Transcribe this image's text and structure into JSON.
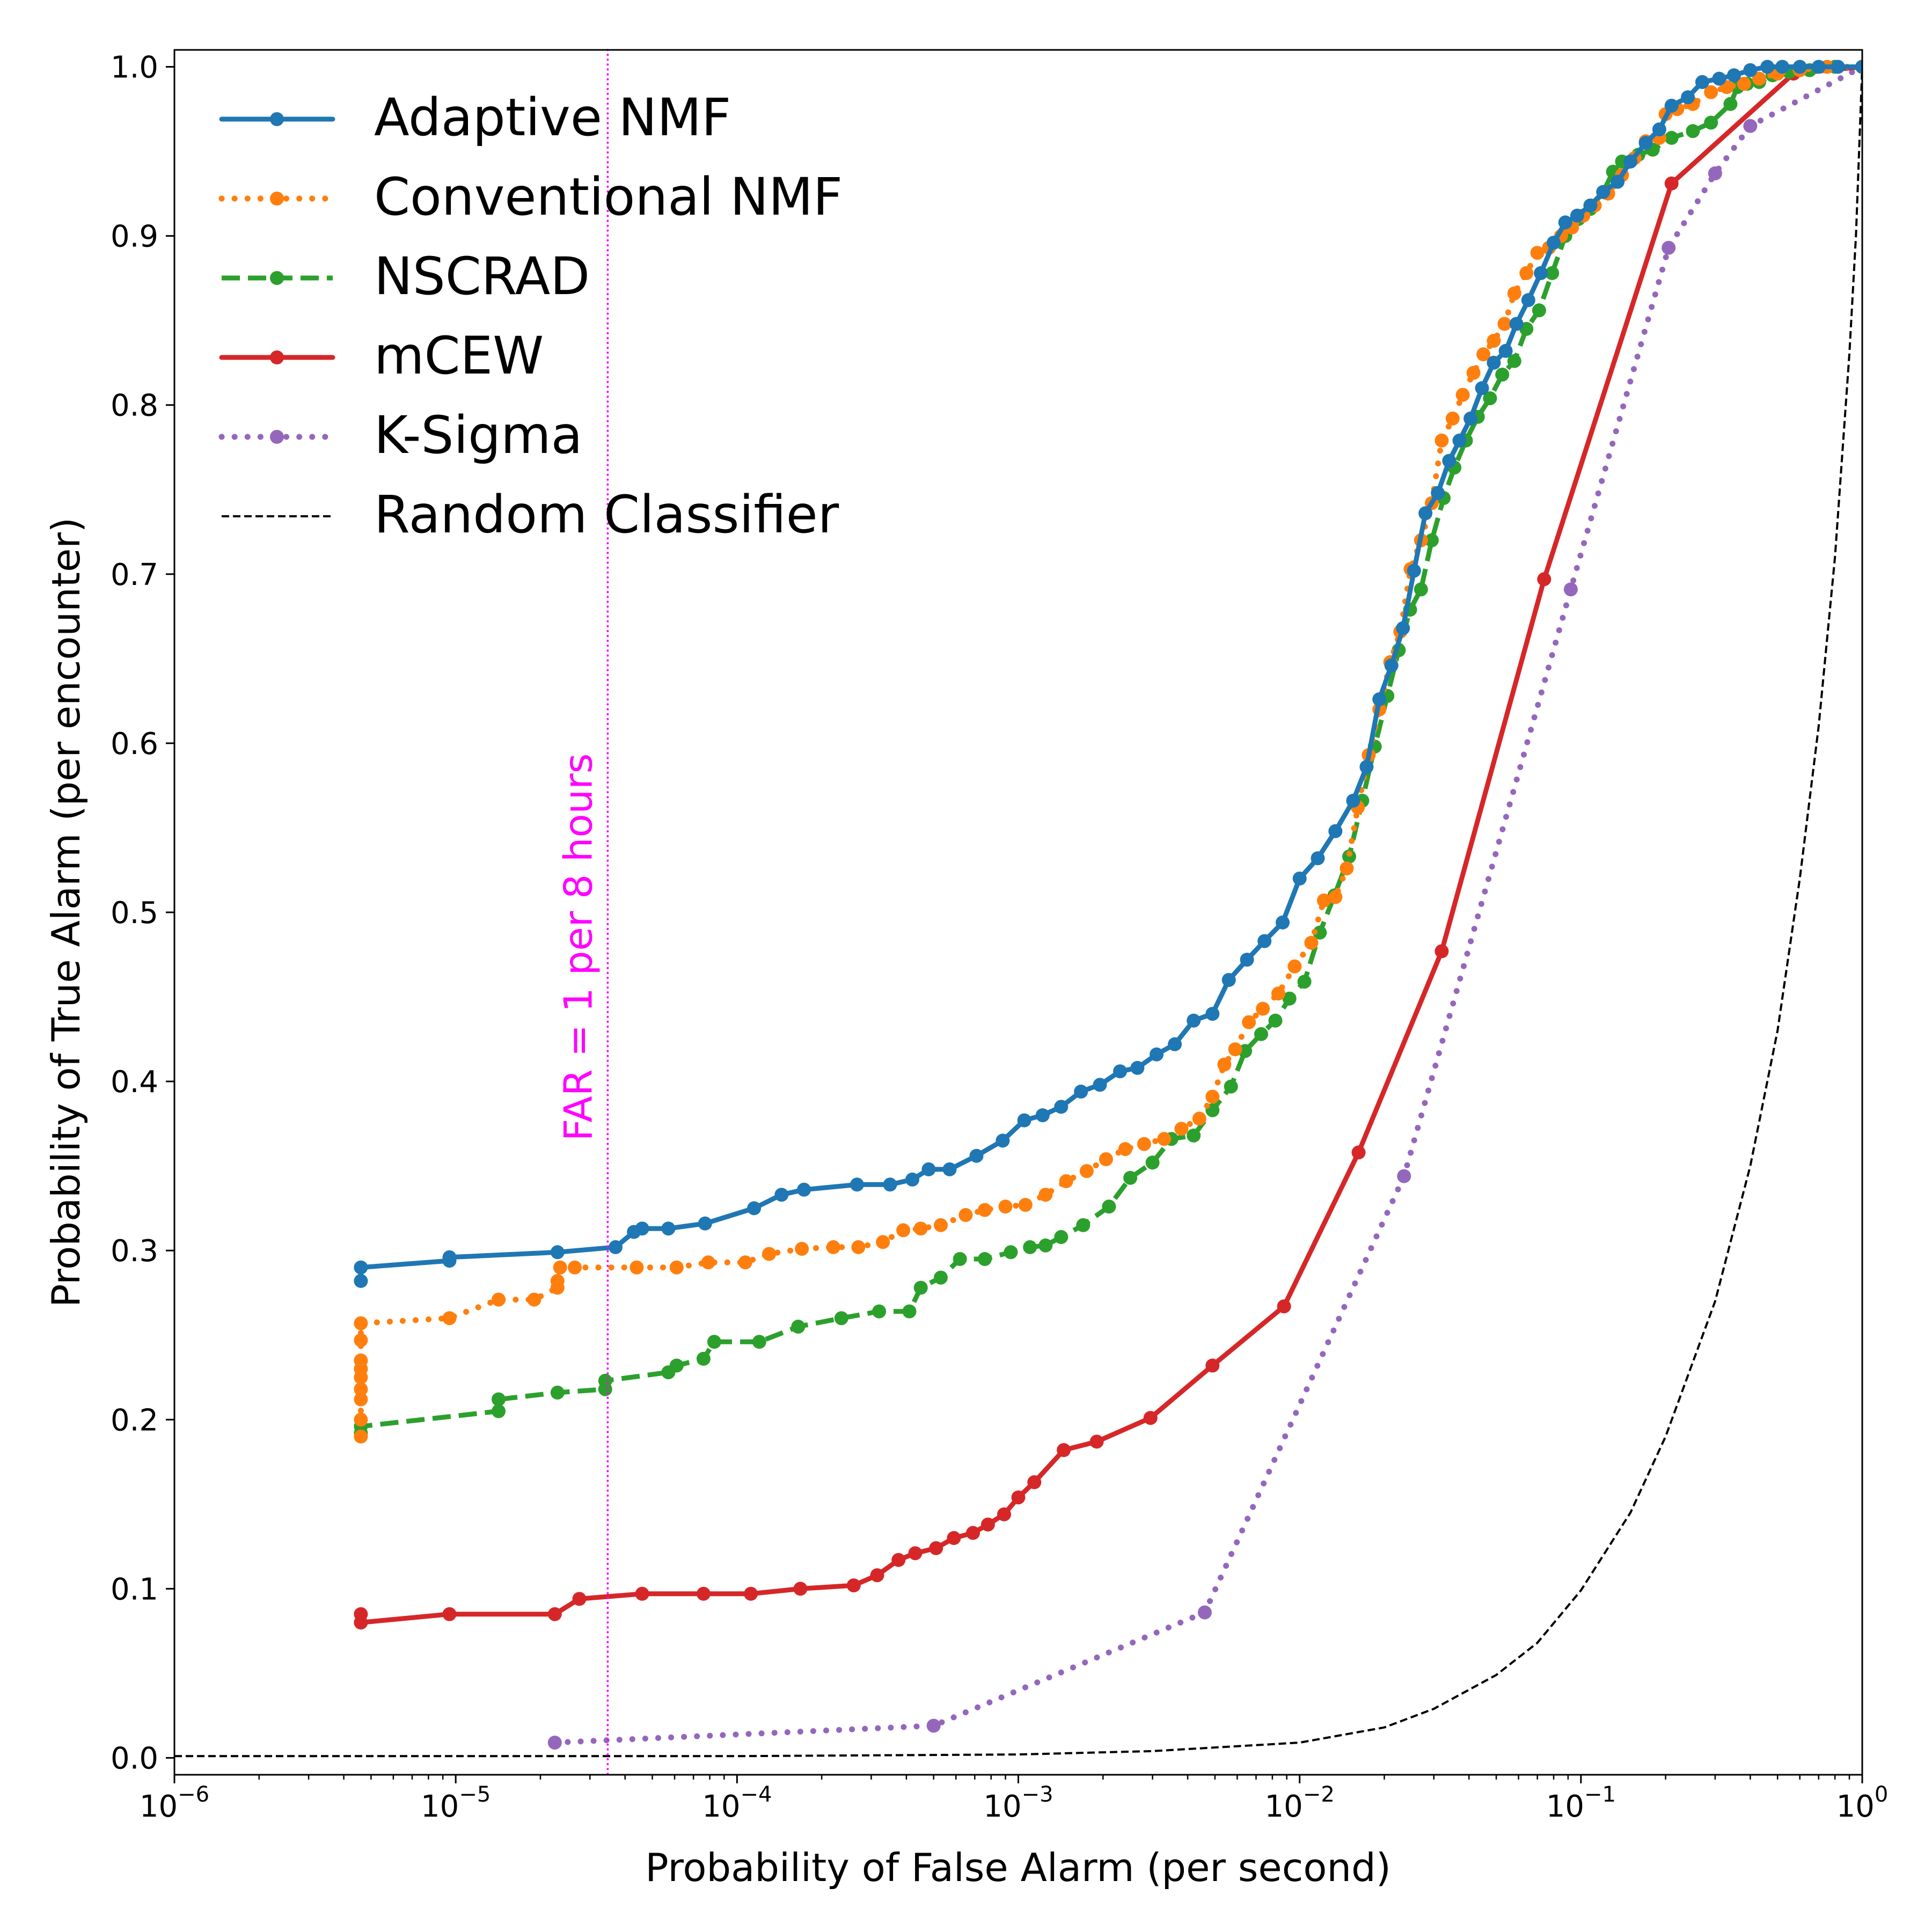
{
  "chart_data": {
    "type": "line",
    "xscale": "log",
    "xlim": [
      1e-06,
      1
    ],
    "ylim": [
      -0.01,
      1.01
    ],
    "xlabel": "Probability of False Alarm (per second)",
    "ylabel": "Probability of True Alarm (per encounter)",
    "xticks": [
      {
        "value": 1e-06,
        "base": "10",
        "exp": "−6"
      },
      {
        "value": 1e-05,
        "base": "10",
        "exp": "−5"
      },
      {
        "value": 0.0001,
        "base": "10",
        "exp": "−4"
      },
      {
        "value": 0.001,
        "base": "10",
        "exp": "−3"
      },
      {
        "value": 0.01,
        "base": "10",
        "exp": "−2"
      },
      {
        "value": 0.1,
        "base": "10",
        "exp": "−1"
      },
      {
        "value": 1,
        "base": "10",
        "exp": "0"
      }
    ],
    "yticks": [
      {
        "value": 0.0,
        "label": "0.0"
      },
      {
        "value": 0.1,
        "label": "0.1"
      },
      {
        "value": 0.2,
        "label": "0.2"
      },
      {
        "value": 0.3,
        "label": "0.3"
      },
      {
        "value": 0.4,
        "label": "0.4"
      },
      {
        "value": 0.5,
        "label": "0.5"
      },
      {
        "value": 0.6,
        "label": "0.6"
      },
      {
        "value": 0.7,
        "label": "0.7"
      },
      {
        "value": 0.8,
        "label": "0.8"
      },
      {
        "value": 0.9,
        "label": "0.9"
      },
      {
        "value": 1.0,
        "label": "1.0"
      }
    ],
    "legend_position": "upper-left",
    "vline": {
      "x": 3.47e-05,
      "label": "FAR = 1 per 8 hours",
      "color": "#ff00ff"
    },
    "series": [
      {
        "name": "Adaptive NMF",
        "color": "#1f77b4",
        "style": "solid",
        "markers": true,
        "x": [
          4.6e-06,
          4.6e-06,
          9.5e-06,
          9.5e-06,
          2.3e-05,
          3.7e-05,
          4.3e-05,
          4.6e-05,
          5.7e-05,
          7.7e-05,
          0.000115,
          0.000144,
          0.000173,
          0.000267,
          0.00035,
          0.00042,
          0.00048,
          0.00057,
          0.00071,
          0.00088,
          0.00105,
          0.00122,
          0.00142,
          0.00167,
          0.00195,
          0.0023,
          0.00265,
          0.0031,
          0.0036,
          0.0042,
          0.0049,
          0.0056,
          0.0065,
          0.0075,
          0.0087,
          0.01,
          0.0116,
          0.0134,
          0.0155,
          0.0173,
          0.0192,
          0.0212,
          0.0233,
          0.0255,
          0.028,
          0.031,
          0.034,
          0.037,
          0.0405,
          0.0445,
          0.049,
          0.054,
          0.059,
          0.065,
          0.072,
          0.08,
          0.088,
          0.097,
          0.108,
          0.12,
          0.135,
          0.15,
          0.17,
          0.19,
          0.21,
          0.24,
          0.27,
          0.31,
          0.35,
          0.4,
          0.46,
          0.52,
          0.6,
          0.7,
          0.82,
          1.0
        ],
        "y": [
          0.282,
          0.29,
          0.294,
          0.296,
          0.299,
          0.302,
          0.311,
          0.313,
          0.313,
          0.316,
          0.325,
          0.333,
          0.336,
          0.339,
          0.339,
          0.342,
          0.348,
          0.348,
          0.356,
          0.365,
          0.377,
          0.38,
          0.385,
          0.394,
          0.398,
          0.406,
          0.408,
          0.416,
          0.422,
          0.436,
          0.44,
          0.46,
          0.472,
          0.483,
          0.494,
          0.52,
          0.532,
          0.548,
          0.566,
          0.586,
          0.626,
          0.646,
          0.668,
          0.702,
          0.736,
          0.748,
          0.767,
          0.779,
          0.792,
          0.81,
          0.825,
          0.832,
          0.848,
          0.862,
          0.878,
          0.896,
          0.908,
          0.912,
          0.918,
          0.926,
          0.932,
          0.944,
          0.955,
          0.963,
          0.977,
          0.982,
          0.991,
          0.993,
          0.995,
          0.998,
          1.0,
          1.0,
          1.0,
          1.0,
          1.0,
          1.0
        ]
      },
      {
        "name": "Conventional NMF",
        "color": "#ff7f0e",
        "style": "dotted",
        "markers": true,
        "x": [
          4.6e-06,
          4.6e-06,
          4.6e-06,
          4.6e-06,
          4.6e-06,
          4.6e-06,
          4.6e-06,
          4.6e-06,
          4.6e-06,
          9.5e-06,
          1.42e-05,
          1.9e-05,
          2.3e-05,
          2.3e-05,
          2.35e-05,
          2.65e-05,
          4.4e-05,
          6.1e-05,
          7.9e-05,
          0.000107,
          0.00013,
          0.00017,
          0.00022,
          0.00027,
          0.00033,
          0.00039,
          0.00045,
          0.00053,
          0.00065,
          0.00076,
          0.0009,
          0.00106,
          0.00125,
          0.00148,
          0.00175,
          0.00205,
          0.0024,
          0.0028,
          0.0033,
          0.0038,
          0.0044,
          0.0049,
          0.0054,
          0.0059,
          0.0066,
          0.0074,
          0.0084,
          0.0096,
          0.011,
          0.0122,
          0.0134,
          0.0147,
          0.0161,
          0.0176,
          0.0192,
          0.021,
          0.0228,
          0.0248,
          0.027,
          0.0295,
          0.032,
          0.035,
          0.038,
          0.0415,
          0.045,
          0.049,
          0.0535,
          0.058,
          0.064,
          0.07,
          0.077,
          0.085,
          0.093,
          0.102,
          0.112,
          0.125,
          0.14,
          0.155,
          0.17,
          0.19,
          0.2,
          0.22,
          0.25,
          0.29,
          0.33,
          0.38,
          0.43,
          0.5,
          0.6,
          0.75,
          1.0
        ],
        "y": [
          0.19,
          0.2,
          0.212,
          0.218,
          0.225,
          0.23,
          0.235,
          0.247,
          0.257,
          0.26,
          0.271,
          0.271,
          0.278,
          0.282,
          0.29,
          0.29,
          0.29,
          0.29,
          0.293,
          0.293,
          0.298,
          0.301,
          0.302,
          0.302,
          0.305,
          0.312,
          0.313,
          0.315,
          0.321,
          0.324,
          0.326,
          0.327,
          0.333,
          0.341,
          0.347,
          0.354,
          0.36,
          0.363,
          0.366,
          0.372,
          0.378,
          0.391,
          0.41,
          0.419,
          0.435,
          0.443,
          0.452,
          0.468,
          0.482,
          0.507,
          0.509,
          0.526,
          0.562,
          0.593,
          0.62,
          0.648,
          0.666,
          0.703,
          0.72,
          0.742,
          0.779,
          0.792,
          0.806,
          0.819,
          0.83,
          0.838,
          0.848,
          0.866,
          0.878,
          0.89,
          0.893,
          0.9,
          0.905,
          0.912,
          0.918,
          0.925,
          0.936,
          0.946,
          0.956,
          0.958,
          0.972,
          0.975,
          0.978,
          0.985,
          0.988,
          0.99,
          0.993,
          0.996,
          0.998,
          1.0,
          1.0
        ]
      },
      {
        "name": "NSCRAD",
        "color": "#2ca02c",
        "style": "dashed",
        "markers": true,
        "x": [
          4.6e-06,
          4.6e-06,
          1.42e-05,
          1.42e-05,
          2.3e-05,
          3.4e-05,
          3.4e-05,
          5.7e-05,
          6.1e-05,
          7.6e-05,
          8.3e-05,
          0.00012,
          0.000165,
          0.000235,
          0.00032,
          0.00041,
          0.00045,
          0.00053,
          0.00062,
          0.00076,
          0.00094,
          0.0011,
          0.00125,
          0.00142,
          0.0017,
          0.0021,
          0.0025,
          0.003,
          0.0035,
          0.0042,
          0.0049,
          0.0057,
          0.0064,
          0.0073,
          0.0082,
          0.0092,
          0.0104,
          0.0118,
          0.0133,
          0.015,
          0.0167,
          0.0185,
          0.0205,
          0.0225,
          0.0247,
          0.027,
          0.0295,
          0.0325,
          0.0355,
          0.039,
          0.043,
          0.0475,
          0.0525,
          0.058,
          0.064,
          0.071,
          0.079,
          0.088,
          0.098,
          0.108,
          0.12,
          0.13,
          0.14,
          0.16,
          0.18,
          0.21,
          0.25,
          0.29,
          0.34,
          0.36,
          0.39,
          0.43,
          0.48,
          0.55,
          0.65,
          0.8,
          1.0
        ],
        "y": [
          0.192,
          0.196,
          0.205,
          0.212,
          0.216,
          0.218,
          0.223,
          0.228,
          0.232,
          0.236,
          0.246,
          0.246,
          0.255,
          0.26,
          0.264,
          0.264,
          0.278,
          0.284,
          0.295,
          0.295,
          0.299,
          0.302,
          0.303,
          0.308,
          0.315,
          0.326,
          0.343,
          0.352,
          0.366,
          0.368,
          0.383,
          0.397,
          0.418,
          0.428,
          0.436,
          0.449,
          0.459,
          0.488,
          0.51,
          0.533,
          0.566,
          0.598,
          0.628,
          0.655,
          0.679,
          0.691,
          0.72,
          0.745,
          0.763,
          0.779,
          0.793,
          0.804,
          0.818,
          0.826,
          0.845,
          0.856,
          0.878,
          0.9,
          0.91,
          0.916,
          0.926,
          0.938,
          0.944,
          0.948,
          0.951,
          0.958,
          0.962,
          0.967,
          0.978,
          0.988,
          0.99,
          0.991,
          0.995,
          0.997,
          0.998,
          1.0,
          1.0
        ]
      },
      {
        "name": "mCEW",
        "color": "#d62728",
        "style": "solid",
        "markers": true,
        "x": [
          4.6e-06,
          4.6e-06,
          9.5e-06,
          2.25e-05,
          2.75e-05,
          4.6e-05,
          7.6e-05,
          0.000112,
          0.000168,
          0.00026,
          0.000315,
          0.000375,
          0.00043,
          0.00051,
          0.00059,
          0.00069,
          0.00078,
          0.00089,
          0.001,
          0.00114,
          0.00145,
          0.0019,
          0.00295,
          0.0049,
          0.0088,
          0.0162,
          0.032,
          0.074,
          0.21,
          0.57,
          1.0
        ],
        "y": [
          0.085,
          0.08,
          0.085,
          0.085,
          0.094,
          0.097,
          0.097,
          0.097,
          0.1,
          0.102,
          0.108,
          0.117,
          0.121,
          0.124,
          0.13,
          0.133,
          0.138,
          0.144,
          0.154,
          0.163,
          0.182,
          0.187,
          0.201,
          0.232,
          0.267,
          0.358,
          0.477,
          0.697,
          0.931,
          0.996,
          1.0
        ]
      },
      {
        "name": "K-Sigma",
        "color": "#9467bd",
        "style": "dotted",
        "markers": true,
        "x": [
          2.25e-05,
          0.0005,
          0.0046,
          0.0235,
          0.092,
          0.205,
          0.3,
          0.4,
          1.0
        ],
        "y": [
          0.009,
          0.019,
          0.086,
          0.344,
          0.691,
          0.893,
          0.937,
          0.965,
          1.0
        ]
      },
      {
        "name": "Random Classifier",
        "color": "#000000",
        "style": "thin-dashed",
        "markers": false,
        "x": [
          1e-06,
          1e-05,
          0.0001,
          0.001,
          0.003,
          0.01,
          0.02,
          0.03,
          0.05,
          0.07,
          0.1,
          0.15,
          0.2,
          0.3,
          0.4,
          0.5,
          0.6,
          0.7,
          0.8,
          0.9,
          0.95,
          1.0
        ],
        "y": [
          0.001,
          0.001,
          0.001,
          0.002,
          0.004,
          0.009,
          0.018,
          0.029,
          0.049,
          0.068,
          0.099,
          0.145,
          0.19,
          0.27,
          0.35,
          0.43,
          0.52,
          0.61,
          0.71,
          0.83,
          0.9,
          1.0
        ]
      }
    ]
  }
}
